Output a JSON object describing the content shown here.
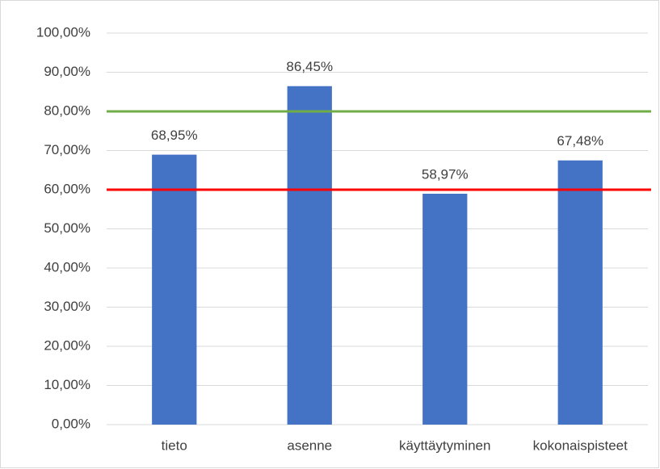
{
  "chart_data": {
    "type": "bar",
    "categories": [
      "tieto",
      "asenne",
      "käyttäytyminen",
      "kokonaispisteet"
    ],
    "values": [
      68.95,
      86.45,
      58.97,
      67.48
    ],
    "value_labels": [
      "68,95%",
      "86,45%",
      "58,97%",
      "67,48%"
    ],
    "color": "#4472c4",
    "ylim": [
      0,
      100
    ],
    "yticks": [
      {
        "value": 0,
        "label": "0,00%"
      },
      {
        "value": 10,
        "label": "10,00%"
      },
      {
        "value": 20,
        "label": "20,00%"
      },
      {
        "value": 30,
        "label": "30,00%"
      },
      {
        "value": 40,
        "label": "40,00%"
      },
      {
        "value": 50,
        "label": "50,00%"
      },
      {
        "value": 60,
        "label": "60,00%"
      },
      {
        "value": 70,
        "label": "70,00%"
      },
      {
        "value": 80,
        "label": "80,00%"
      },
      {
        "value": 90,
        "label": "90,00%"
      },
      {
        "value": 100,
        "label": "100,00%"
      }
    ],
    "grid": true,
    "reference_lines": [
      {
        "value": 80,
        "color": "#70ad47"
      },
      {
        "value": 60,
        "color": "#ff0000"
      }
    ]
  }
}
